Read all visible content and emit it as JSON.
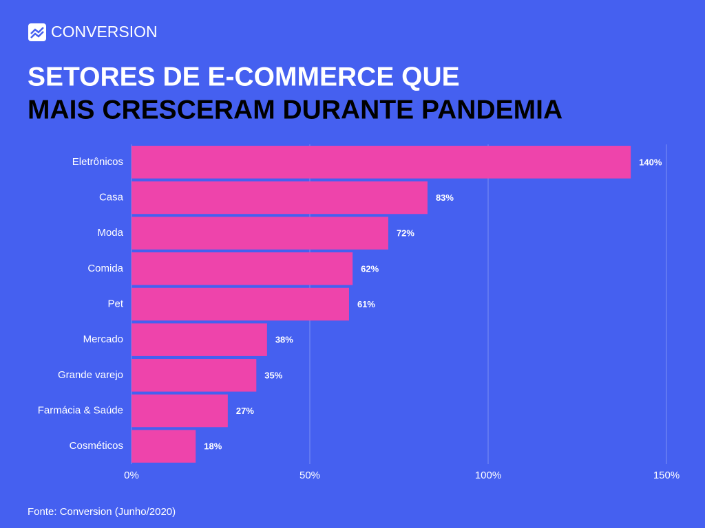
{
  "brand": "CONVERSION",
  "source": "Fonte: Conversion (Junho/2020)",
  "chart_data": {
    "type": "bar",
    "orientation": "horizontal",
    "title": "SETORES DE E-COMMERCE QUE",
    "subtitle": "MAIS CRESCERAM DURANTE PANDEMIA",
    "categories": [
      "Eletrônicos",
      "Casa",
      "Moda",
      "Comida",
      "Pet",
      "Mercado",
      "Grande varejo",
      "Farmácia & Saúde",
      "Cosméticos"
    ],
    "values": [
      140,
      83,
      72,
      62,
      61,
      38,
      35,
      27,
      18
    ],
    "value_labels": [
      "140%",
      "83%",
      "72%",
      "62%",
      "61%",
      "38%",
      "35%",
      "27%",
      "18%"
    ],
    "color": "#ee44ab",
    "xlim": [
      0,
      150
    ],
    "xticks": [
      {
        "value": 0,
        "label": "0%"
      },
      {
        "value": 50,
        "label": "50%"
      },
      {
        "value": 100,
        "label": "100%"
      },
      {
        "value": 150,
        "label": "150%"
      }
    ],
    "grid": true
  }
}
